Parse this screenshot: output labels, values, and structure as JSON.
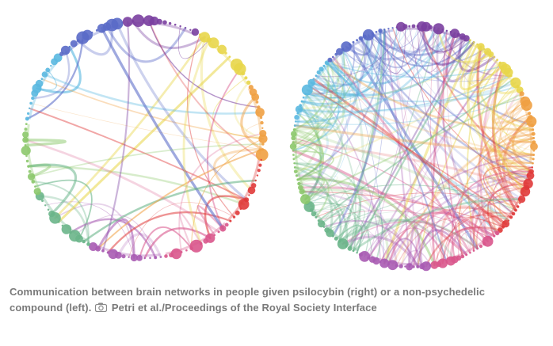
{
  "figure": {
    "diagrams": [
      {
        "name": "placebo-network",
        "nodes_per_group": 14,
        "edge_count": 55,
        "edge_opacity": 0.45,
        "seed": 7
      },
      {
        "name": "psilocybin-network",
        "nodes_per_group": 18,
        "edge_count": 260,
        "edge_opacity": 0.35,
        "seed": 31
      }
    ],
    "group_colors": [
      "#e8d64a",
      "#f0a043",
      "#e03a3a",
      "#d9578c",
      "#a85bb3",
      "#6ab58a",
      "#8cc86b",
      "#5ab8e0",
      "#5a6ac8",
      "#7a3fa0"
    ]
  },
  "caption": {
    "line1": "Communication between brain networks in people given psilocybin (right) or a non-psychedelic",
    "line2_prefix": "compound (left).",
    "credit_icon": "camera-icon",
    "credit": "Petri et al./Proceedings of the Royal Society Interface"
  }
}
